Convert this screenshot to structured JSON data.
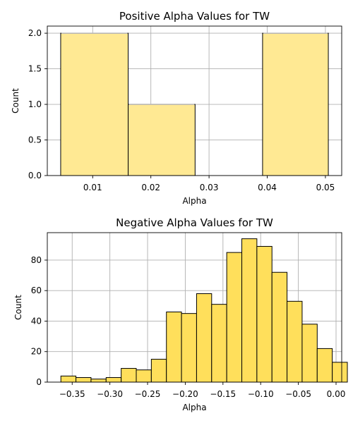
{
  "chart_data": [
    {
      "type": "bar",
      "title": "Positive Alpha Values for TW",
      "xlabel": "Alpha",
      "ylabel": "Count",
      "bins": [
        {
          "x0": 0.0045,
          "x1": 0.0161,
          "count": 2
        },
        {
          "x0": 0.0161,
          "x1": 0.0276,
          "count": 1
        },
        {
          "x0": 0.0276,
          "x1": 0.0392,
          "count": 0
        },
        {
          "x0": 0.0392,
          "x1": 0.0505,
          "count": 2
        }
      ],
      "xlim": [
        0.0022,
        0.0528
      ],
      "ylim": [
        0,
        2.1
      ],
      "xticks": [
        0.01,
        0.02,
        0.03,
        0.04,
        0.05
      ],
      "xtick_labels": [
        "0.01",
        "0.02",
        "0.03",
        "0.04",
        "0.05"
      ],
      "yticks": [
        0.0,
        0.5,
        1.0,
        1.5,
        2.0
      ],
      "ytick_labels": [
        "0.0",
        "0.5",
        "1.0",
        "1.5",
        "2.0"
      ],
      "grid": true,
      "colors": {
        "bar_fill": "#ffe993",
        "bar_edge": "#000000",
        "bar_top": "#b8b8b8"
      }
    },
    {
      "type": "bar",
      "title": "Negative Alpha Values for TW",
      "xlabel": "Alpha",
      "ylabel": "Count",
      "bins": [
        {
          "x0": -0.365,
          "x1": -0.345,
          "count": 4
        },
        {
          "x0": -0.345,
          "x1": -0.325,
          "count": 3
        },
        {
          "x0": -0.325,
          "x1": -0.305,
          "count": 2
        },
        {
          "x0": -0.305,
          "x1": -0.285,
          "count": 3
        },
        {
          "x0": -0.285,
          "x1": -0.265,
          "count": 9
        },
        {
          "x0": -0.265,
          "x1": -0.245,
          "count": 8
        },
        {
          "x0": -0.245,
          "x1": -0.225,
          "count": 15
        },
        {
          "x0": -0.225,
          "x1": -0.205,
          "count": 46
        },
        {
          "x0": -0.205,
          "x1": -0.185,
          "count": 45
        },
        {
          "x0": -0.185,
          "x1": -0.165,
          "count": 58
        },
        {
          "x0": -0.165,
          "x1": -0.145,
          "count": 51
        },
        {
          "x0": -0.145,
          "x1": -0.125,
          "count": 85
        },
        {
          "x0": -0.125,
          "x1": -0.105,
          "count": 94
        },
        {
          "x0": -0.105,
          "x1": -0.085,
          "count": 89
        },
        {
          "x0": -0.085,
          "x1": -0.065,
          "count": 72
        },
        {
          "x0": -0.065,
          "x1": -0.045,
          "count": 53
        },
        {
          "x0": -0.045,
          "x1": -0.025,
          "count": 38
        },
        {
          "x0": -0.025,
          "x1": -0.005,
          "count": 22
        },
        {
          "x0": -0.005,
          "x1": 0.015,
          "count": 13
        }
      ],
      "xlim": [
        -0.383,
        0.0075
      ],
      "ylim": [
        0,
        98
      ],
      "xticks": [
        -0.35,
        -0.3,
        -0.25,
        -0.2,
        -0.15,
        -0.1,
        -0.05,
        0.0
      ],
      "xtick_labels": [
        "−0.35",
        "−0.30",
        "−0.25",
        "−0.20",
        "−0.15",
        "−0.10",
        "−0.05",
        "0.00"
      ],
      "yticks": [
        0,
        20,
        40,
        60,
        80
      ],
      "ytick_labels": [
        "0",
        "20",
        "40",
        "60",
        "80"
      ],
      "grid": true,
      "colors": {
        "bar_fill": "#ffdf5b",
        "bar_edge": "#000000"
      }
    }
  ]
}
